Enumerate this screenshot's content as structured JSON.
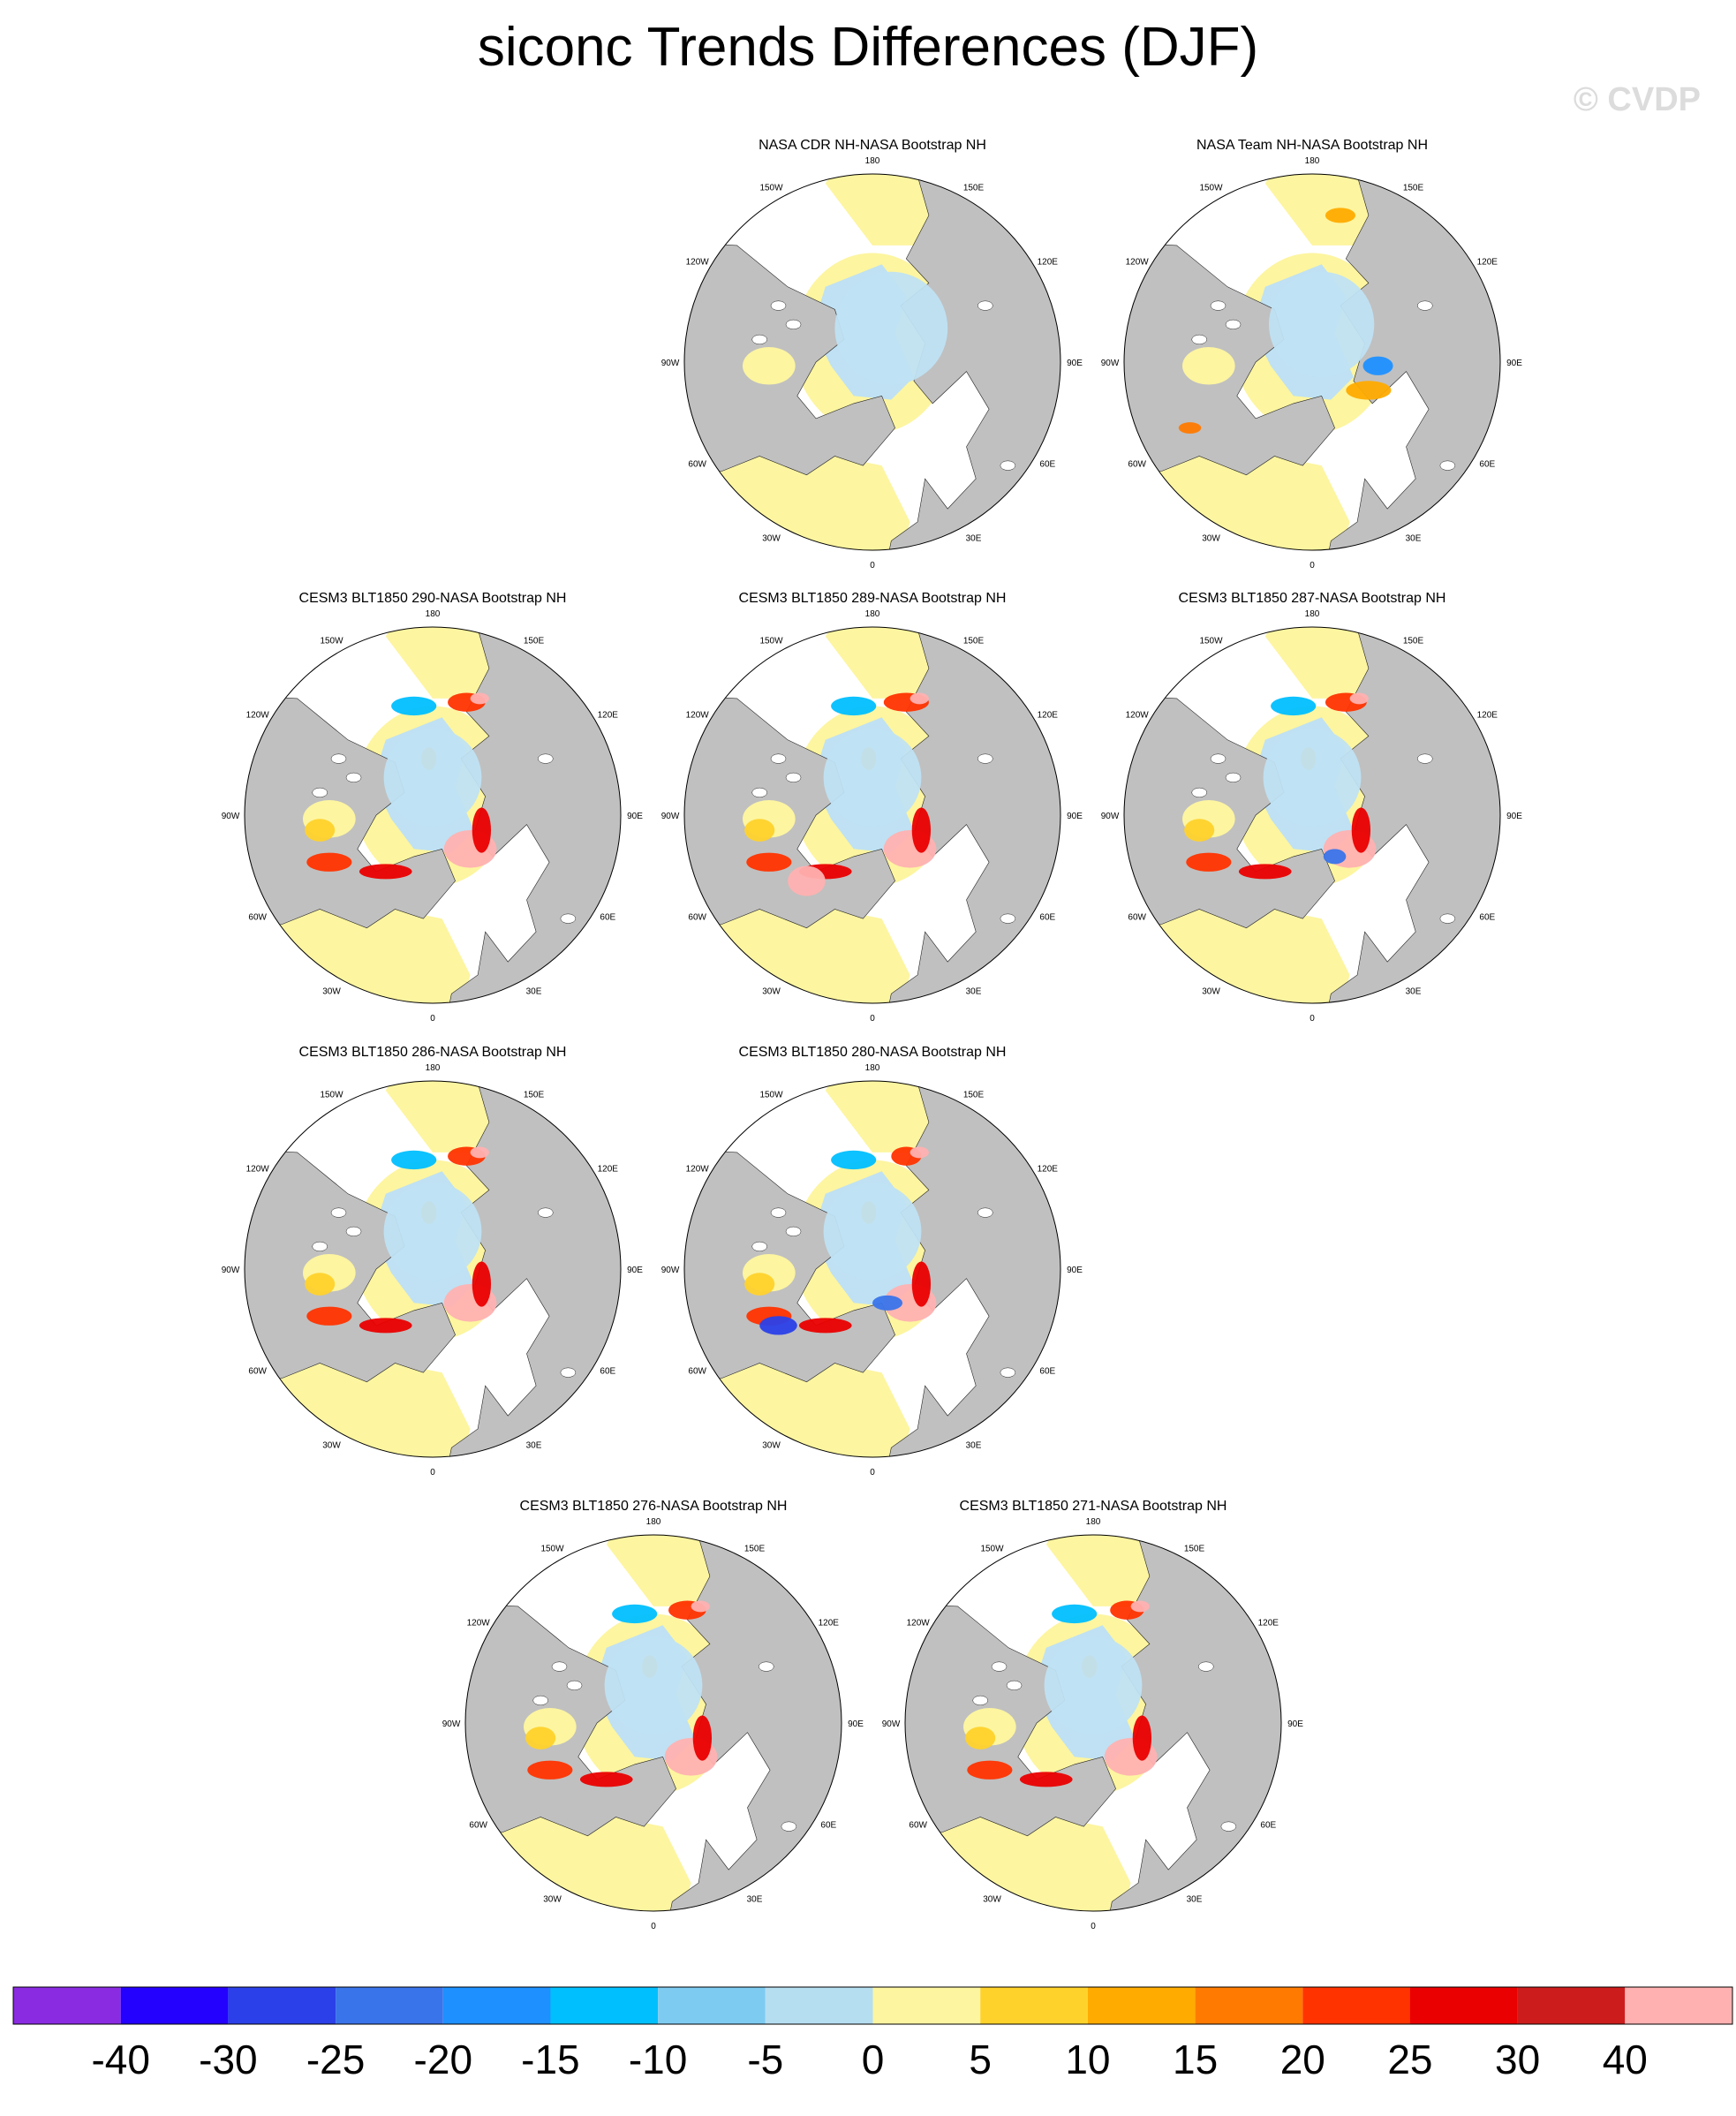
{
  "title": "siconc Trends Differences (DJF)",
  "watermark": "© CVDP",
  "colors": {
    "land": "#c0c0c0",
    "ocean": "#ffffff",
    "zero_pos": "#fdf5a0",
    "zero_neg": "#bfe1f3",
    "outline": "#222222"
  },
  "longitude_labels": [
    "180",
    "150E",
    "120E",
    "90E",
    "60E",
    "30E",
    "0",
    "30W",
    "60W",
    "90W",
    "120W",
    "150W"
  ],
  "panels": [
    {
      "title": "NASA CDR NH-NASA Bootstrap NH",
      "pattern": "cdr"
    },
    {
      "title": "NASA Team NH-NASA Bootstrap NH",
      "pattern": "team"
    },
    {
      "title": "CESM3 BLT1850 290-NASA Bootstrap NH",
      "pattern": "p290"
    },
    {
      "title": "CESM3 BLT1850 289-NASA Bootstrap NH",
      "pattern": "p289"
    },
    {
      "title": "CESM3 BLT1850 287-NASA Bootstrap NH",
      "pattern": "p287"
    },
    {
      "title": "CESM3 BLT1850 286-NASA Bootstrap NH",
      "pattern": "p286"
    },
    {
      "title": "CESM3 BLT1850 280-NASA Bootstrap NH",
      "pattern": "p280"
    },
    {
      "title": "CESM3 BLT1850 276-NASA Bootstrap NH",
      "pattern": "p276"
    },
    {
      "title": "CESM3 BLT1850 271-NASA Bootstrap NH",
      "pattern": "p271"
    }
  ],
  "colorbar": {
    "colors": [
      "#8a2be2",
      "#2400ff",
      "#2b40e8",
      "#3a74ea",
      "#1e90ff",
      "#00bfff",
      "#7ecbf2",
      "#b6def1",
      "#fdf5a0",
      "#ffd22b",
      "#ffab00",
      "#ff7a00",
      "#ff3300",
      "#ea0000",
      "#cc1c1c",
      "#ffb1b1"
    ],
    "labels": [
      "-40",
      "-30",
      "-25",
      "-20",
      "-15",
      "-10",
      "-5",
      "0",
      "5",
      "10",
      "15",
      "20",
      "25",
      "30",
      "40"
    ]
  }
}
